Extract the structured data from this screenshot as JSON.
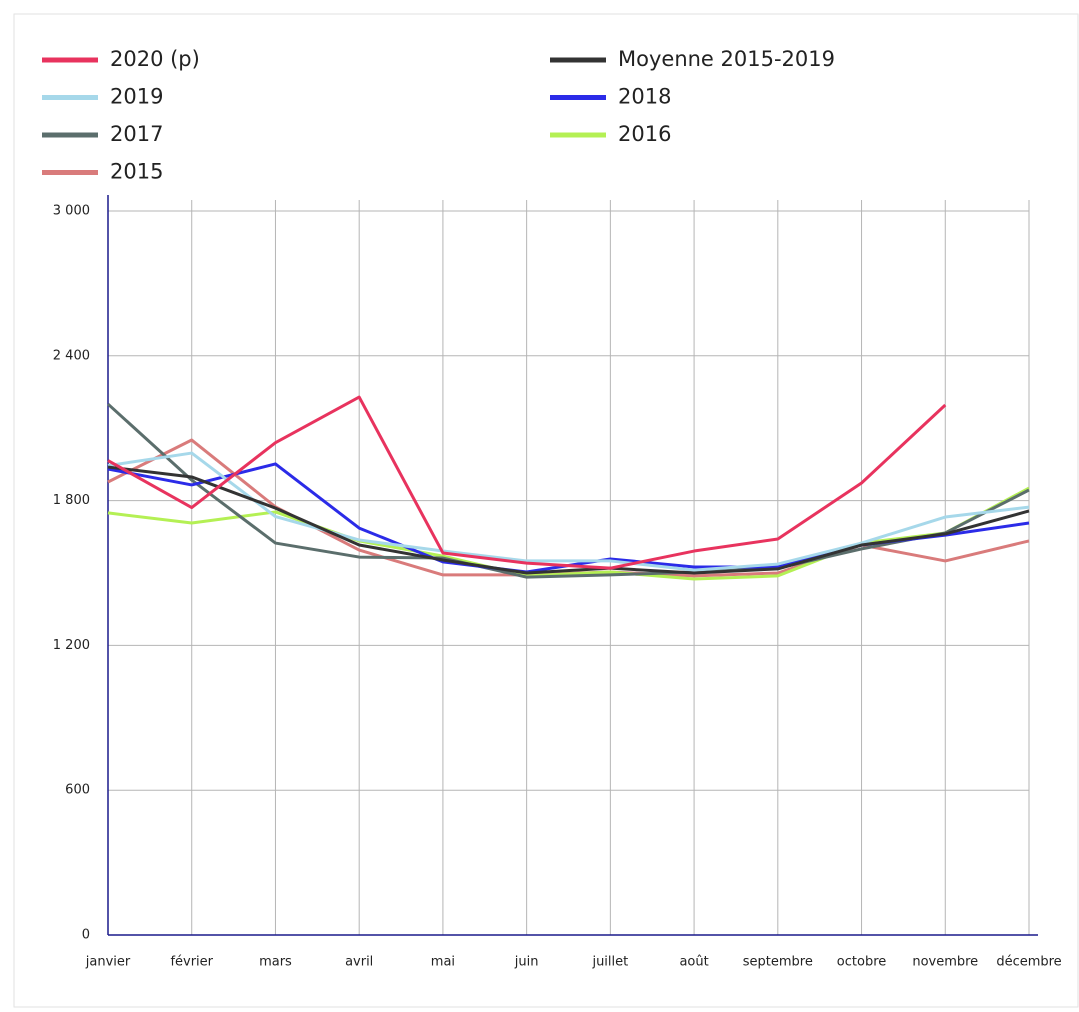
{
  "chart_data": {
    "type": "line",
    "categories": [
      "janvier",
      "février",
      "mars",
      "avril",
      "mai",
      "juin",
      "juillet",
      "août",
      "septembre",
      "octobre",
      "novembre",
      "décembre"
    ],
    "series": [
      {
        "name": "2020 (p)",
        "color": "#e8335e",
        "values": [
          1966,
          1771,
          2040,
          2229,
          1583,
          1541,
          1520,
          1591,
          1641,
          1873,
          2196,
          null
        ]
      },
      {
        "name": "Moyenne 2015-2019",
        "color": "#333333",
        "values": [
          1939,
          1898,
          1769,
          1616,
          1554,
          1500,
          1520,
          1500,
          1517,
          1616,
          1662,
          1757
        ]
      },
      {
        "name": "2019",
        "color": "#a6d8ea",
        "values": [
          1945,
          1997,
          1734,
          1637,
          1591,
          1550,
          1550,
          1512,
          1537,
          1624,
          1732,
          1773
        ]
      },
      {
        "name": "2018",
        "color": "#2b2be8",
        "values": [
          1931,
          1865,
          1952,
          1686,
          1546,
          1504,
          1558,
          1525,
          1525,
          1616,
          1657,
          1707
        ]
      },
      {
        "name": "2017",
        "color": "#5b6e6c",
        "values": [
          2200,
          1885,
          1624,
          1566,
          1562,
          1483,
          1492,
          1504,
          1520,
          1600,
          1666,
          1844
        ]
      },
      {
        "name": "2016",
        "color": "#b4f054",
        "values": [
          1749,
          1707,
          1753,
          1633,
          1570,
          1488,
          1504,
          1475,
          1488,
          1624,
          1666,
          1852
        ]
      },
      {
        "name": "2015",
        "color": "#d97b7b",
        "values": [
          1877,
          2051,
          1774,
          1595,
          1492,
          1492,
          1504,
          1488,
          1500,
          1616,
          1550,
          1633
        ]
      }
    ],
    "ylim": [
      0,
      3000
    ],
    "yticks": [
      0,
      600,
      {
        "value": 1200,
        "label": "1 200"
      },
      {
        "value": 1800,
        "label": "1 800"
      },
      {
        "value": 2400,
        "label": "2 400"
      },
      {
        "value": 3000,
        "label": "3 000"
      }
    ],
    "grid": true
  }
}
